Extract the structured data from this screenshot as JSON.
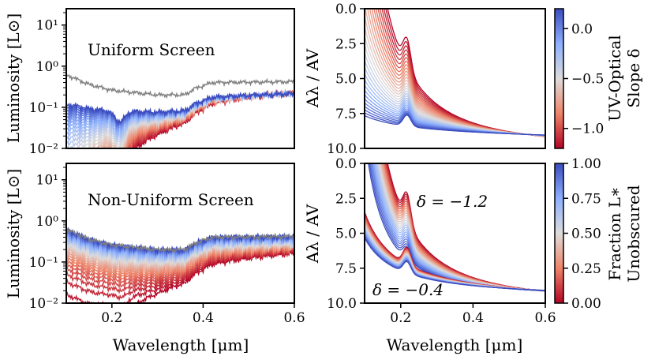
{
  "figure": {
    "type": "multi-panel",
    "panels": 4
  },
  "colors": {
    "red": "#b40426",
    "white": "#dddcdc",
    "blue": "#3b4cc0",
    "grey": "#808080"
  },
  "colorbars": {
    "top": {
      "label_line1": "UV-Optical",
      "label_line2": "Slope δ",
      "ticks": [
        "0.0",
        "−0.5",
        "−1.0"
      ],
      "range": [
        -1.2,
        0.2
      ],
      "tick_values": [
        0.0,
        -0.5,
        -1.0
      ]
    },
    "bottom": {
      "label_line1": "Fraction L∗",
      "label_line2": "Unobscured",
      "ticks": [
        "1.00",
        "0.75",
        "0.50",
        "0.25",
        "0.00"
      ],
      "range": [
        0,
        1
      ],
      "tick_values": [
        1.0,
        0.75,
        0.5,
        0.25,
        0.0
      ]
    }
  },
  "chart_data": [
    {
      "type": "line",
      "panel": "top-left",
      "annotation": "Uniform Screen",
      "ylabel": "Luminosity [L⊙]",
      "xlabel": "",
      "yscale": "log",
      "ylim": [
        0.01,
        25
      ],
      "xlim": [
        0.1,
        0.6
      ],
      "ytick_labels": [
        "10¹",
        "10⁰",
        "10⁻¹",
        "10⁻²"
      ],
      "series_note": "family of spectra colored by UV-optical slope delta; grey = unattenuated spectrum",
      "series_count": 30,
      "grey_continuum": [
        {
          "x": 0.1,
          "y": 0.62
        },
        {
          "x": 0.15,
          "y": 0.36
        },
        {
          "x": 0.2,
          "y": 0.26
        },
        {
          "x": 0.3,
          "y": 0.2
        },
        {
          "x": 0.36,
          "y": 0.2
        },
        {
          "x": 0.38,
          "y": 0.28
        },
        {
          "x": 0.42,
          "y": 0.4
        },
        {
          "x": 0.6,
          "y": 0.42
        }
      ]
    },
    {
      "type": "line",
      "panel": "top-right",
      "ylabel": "Aλ / AV",
      "xlabel": "",
      "ylim": [
        0.0,
        10.0
      ],
      "xlim": [
        0.1,
        0.6
      ],
      "ytick_labels": [
        "0.0",
        "2.5",
        "5.0",
        "7.5",
        "10.0"
      ],
      "series_note": "attenuation curves colored by slope delta from 0.2 (blue) to -1.2 (red)",
      "series_count": 30
    },
    {
      "type": "line",
      "panel": "bottom-left",
      "annotation": "Non-Uniform Screen",
      "ylabel": "Luminosity [L⊙]",
      "xlabel": "Wavelength [μm]",
      "yscale": "log",
      "ylim": [
        0.01,
        25
      ],
      "xlim": [
        0.1,
        0.6
      ],
      "xtick_labels": [
        "0.2",
        "0.4",
        "0.6"
      ],
      "ytick_labels": [
        "10¹",
        "10⁰",
        "10⁻¹",
        "10⁻²"
      ],
      "series_note": "spectra colored by fraction of L* unobscured",
      "series_count": 30
    },
    {
      "type": "line",
      "panel": "bottom-right",
      "ylabel": "Aλ / AV",
      "xlabel": "Wavelength [μm]",
      "ylim": [
        0.0,
        10.0
      ],
      "xlim": [
        0.1,
        0.6
      ],
      "xtick_labels": [
        "0.2",
        "0.4",
        "0.6"
      ],
      "ytick_labels": [
        "0.0",
        "2.5",
        "5.0",
        "7.5",
        "10.0"
      ],
      "annotations": [
        "δ = −1.2",
        "δ = −0.4"
      ],
      "series_note": "two families of curves (delta = -1.2 and delta = -0.4) colored by fraction unobscured",
      "series_count": 24
    }
  ]
}
